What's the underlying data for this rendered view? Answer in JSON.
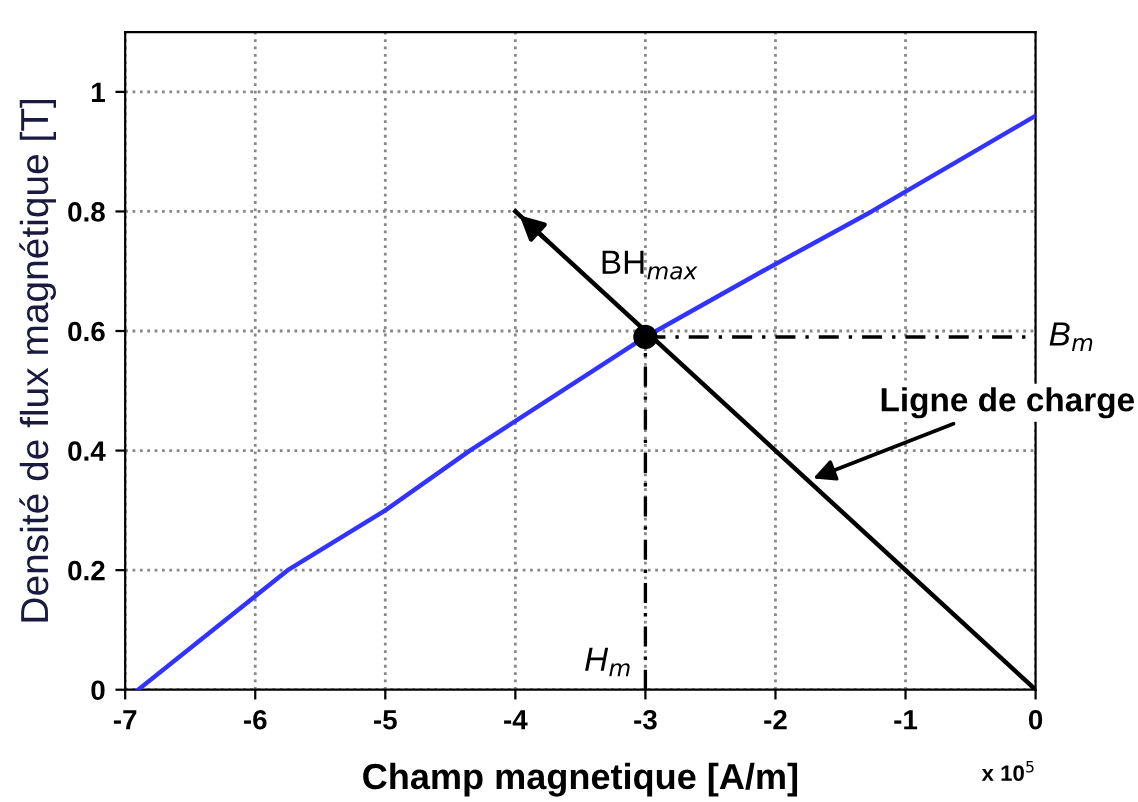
{
  "chart_data": {
    "type": "line",
    "xlabel": "Champ magnetique [A/m]",
    "ylabel": "Densité de flux magnétique [T]",
    "xlim": [
      -7,
      0
    ],
    "ylim": [
      0,
      1.1
    ],
    "xticks": [
      -7,
      -6,
      -5,
      -4,
      -3,
      -2,
      -1,
      0
    ],
    "yticks": [
      0,
      0.2,
      0.4,
      0.6,
      0.8,
      1
    ],
    "grid": true,
    "legend": false,
    "marker": "none",
    "series": [
      {
        "color": "#3333ff",
        "line_style": "solid",
        "x": [
          -6.9,
          -5.75,
          -5,
          -4.35,
          -3,
          -2.1,
          -1.26,
          0
        ],
        "values": [
          0,
          0.2,
          0.3,
          0.4,
          0.59,
          0.7,
          0.8,
          0.96
        ]
      },
      {
        "color": "#000000",
        "line_style": "solid",
        "x": [
          0,
          -4
        ],
        "values": [
          0,
          0.8
        ]
      },
      {
        "color": "#000000",
        "line_style": "dashed",
        "x": [
          -3,
          -3
        ],
        "values": [
          0,
          0.59
        ]
      },
      {
        "color": "#000000",
        "line_style": "dashed",
        "x": [
          -3,
          0
        ],
        "values": [
          0.59,
          0.59
        ]
      },
      {
        "type": "scatter",
        "color": "#000000",
        "marker": "circle",
        "x": [
          -3
        ],
        "values": [
          0.59
        ]
      }
    ],
    "annotations": [
      {
        "text": "BH$_{max}$",
        "x": -3,
        "y": 0.59
      },
      {
        "text": "B$_{m}$",
        "x": 0,
        "y": 0.59
      },
      {
        "text": "H$_{m}$",
        "x": -3,
        "y": 0
      },
      {
        "text": "Ligne de charge",
        "x": -1.75,
        "y": 0.35
      },
      "x 10$^{5}$"
    ]
  }
}
